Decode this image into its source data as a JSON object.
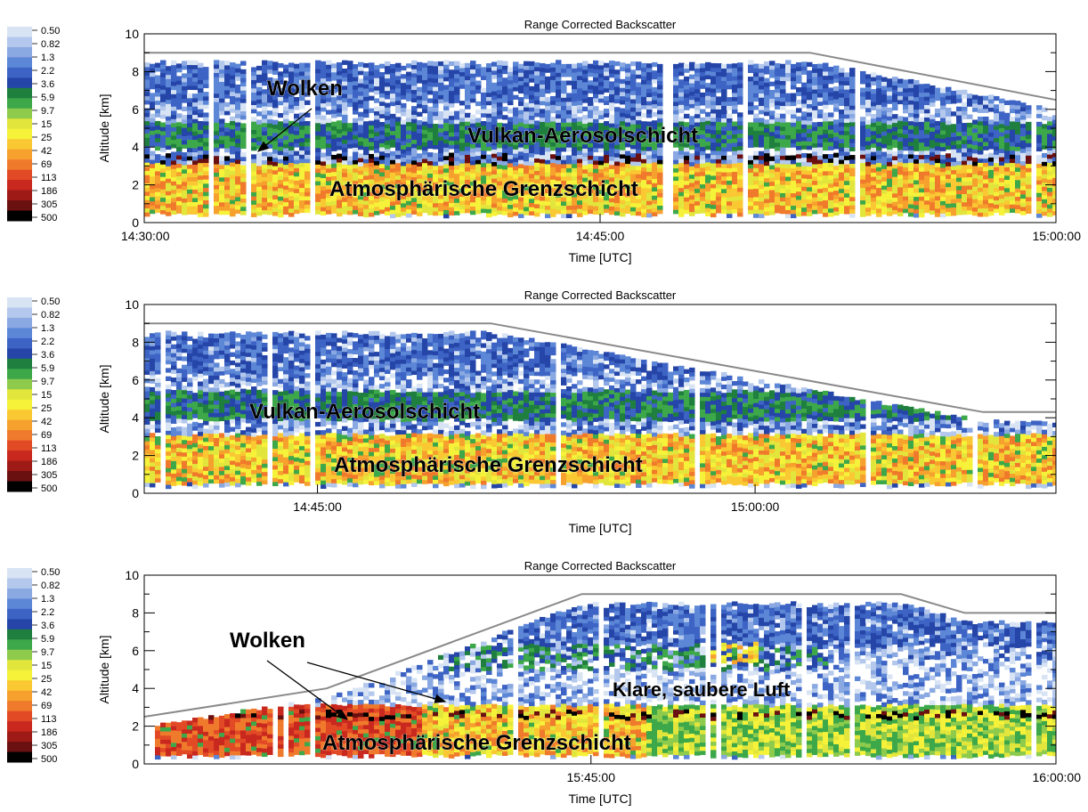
{
  "colorbar": {
    "labels": [
      "0.50",
      "0.82",
      "1.3",
      "2.2",
      "3.6",
      "5.9",
      "9.7",
      "15",
      "25",
      "42",
      "69",
      "113",
      "186",
      "305",
      "500"
    ],
    "colors": [
      "#d8e4f4",
      "#b3c8ec",
      "#8aa8e2",
      "#5c86d6",
      "#3d64c4",
      "#2546a8",
      "#1f7f3f",
      "#3da84a",
      "#8ecb4c",
      "#e2e63c",
      "#f6f23a",
      "#f9c832",
      "#f6a12e",
      "#f07a2c",
      "#e24a26",
      "#c8281e",
      "#9e1a16",
      "#6a1010",
      "#000000"
    ]
  },
  "panels": [
    {
      "title": "Range Corrected Backscatter",
      "ylabel": "Altitude [km]",
      "xlabel": "Time [UTC]",
      "yticks": [
        "0",
        "2",
        "4",
        "6",
        "8",
        "10"
      ],
      "xticks": [
        {
          "label": "14:30:00",
          "at": 0.0
        },
        {
          "label": "14:45:00",
          "at": 0.5
        },
        {
          "label": "15:00:00",
          "at": 1.0
        }
      ],
      "annotations": [
        "Wolken",
        "Vulkan-Aerosolschicht",
        "Atmosphärische Grenzschicht"
      ]
    },
    {
      "title": "Range Corrected Backscatter",
      "ylabel": "Altitude [km]",
      "xlabel": "Time [UTC]",
      "yticks": [
        "0",
        "2",
        "4",
        "6",
        "8",
        "10"
      ],
      "xticks": [
        {
          "label": "14:45:00",
          "at": 0.19
        },
        {
          "label": "15:00:00",
          "at": 0.67
        }
      ],
      "annotations": [
        "Vulkan-Aerosolschicht",
        "Atmosphärische Grenzschicht"
      ]
    },
    {
      "title": "Range Corrected Backscatter",
      "ylabel": "Altitude [km]",
      "xlabel": "Time [UTC]",
      "yticks": [
        "0",
        "2",
        "4",
        "6",
        "8",
        "10"
      ],
      "xticks": [
        {
          "label": "15:45:00",
          "at": 0.49
        },
        {
          "label": "16:00:00",
          "at": 1.0
        }
      ],
      "annotations": [
        "Wolken",
        "Klare, saubere Luft",
        "Atmosphärische Grenzschicht"
      ]
    }
  ],
  "chart_data": [
    {
      "type": "heatmap",
      "title": "Range Corrected Backscatter",
      "xlabel": "Time [UTC]",
      "ylabel": "Altitude [km]",
      "ylim": [
        0,
        10
      ],
      "x_range": [
        "14:30:00",
        "15:00:00"
      ],
      "flight_altitude_km": [
        [
          0.0,
          9.0
        ],
        [
          0.73,
          9.0
        ],
        [
          1.0,
          6.5
        ]
      ],
      "layers": [
        {
          "name": "Atmosphärische Grenzschicht",
          "alt_km": [
            0.3,
            3.0
          ],
          "level": "high"
        },
        {
          "name": "Vulkan-Aerosolschicht",
          "alt_km": [
            3.8,
            5.2
          ],
          "level": "medium"
        },
        {
          "name": "Wolken",
          "alt_km": [
            3.0,
            3.5
          ],
          "level": "very high"
        }
      ]
    },
    {
      "type": "heatmap",
      "title": "Range Corrected Backscatter",
      "xlabel": "Time [UTC]",
      "ylabel": "Altitude [km]",
      "ylim": [
        0,
        10
      ],
      "x_ticks": [
        "14:45:00",
        "15:00:00"
      ],
      "flight_altitude_km": [
        [
          0.0,
          9.0
        ],
        [
          0.38,
          9.0
        ],
        [
          0.92,
          4.3
        ],
        [
          1.0,
          4.3
        ]
      ],
      "layers": [
        {
          "name": "Atmosphärische Grenzschicht",
          "alt_km": [
            0.4,
            3.0
          ],
          "level": "high"
        },
        {
          "name": "Vulkan-Aerosolschicht",
          "alt_km": [
            3.8,
            5.3
          ],
          "level": "medium"
        }
      ]
    },
    {
      "type": "heatmap",
      "title": "Range Corrected Backscatter",
      "xlabel": "Time [UTC]",
      "ylabel": "Altitude [km]",
      "ylim": [
        0,
        10
      ],
      "x_ticks": [
        "15:45:00",
        "16:00:00"
      ],
      "flight_altitude_km": [
        [
          0.0,
          2.5
        ],
        [
          0.2,
          4.0
        ],
        [
          0.48,
          9.0
        ],
        [
          0.83,
          9.0
        ],
        [
          0.9,
          8.0
        ],
        [
          1.0,
          8.0
        ]
      ],
      "layers": [
        {
          "name": "Atmosphärische Grenzschicht",
          "alt_km": [
            0.3,
            3.0
          ],
          "level": "high"
        },
        {
          "name": "Wolken",
          "alt_km": [
            2.3,
            2.7
          ],
          "level": "very high"
        },
        {
          "name": "Klare, saubere Luft",
          "alt_km": [
            3.0,
            5.5
          ],
          "level": "low"
        }
      ]
    }
  ]
}
